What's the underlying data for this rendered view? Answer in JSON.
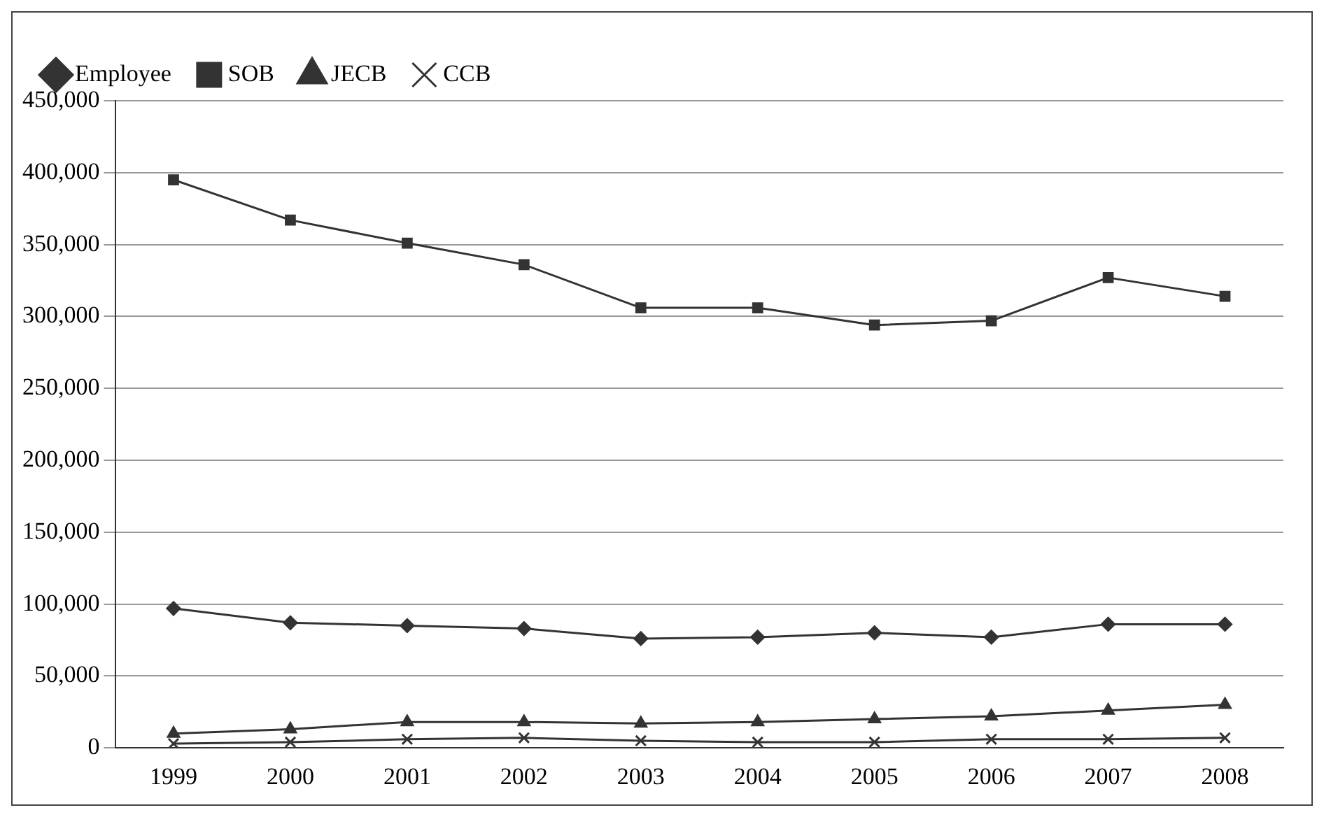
{
  "chart_data": {
    "type": "line",
    "categories": [
      "1999",
      "2000",
      "2001",
      "2002",
      "2003",
      "2004",
      "2005",
      "2006",
      "2007",
      "2008"
    ],
    "series": [
      {
        "name": "Employee",
        "color": "#333333",
        "marker": "diamond",
        "values": [
          97000,
          87000,
          85000,
          83000,
          76000,
          77000,
          80000,
          77000,
          86000,
          86000
        ]
      },
      {
        "name": "SOB",
        "color": "#333333",
        "marker": "square",
        "values": [
          395000,
          367000,
          351000,
          336000,
          306000,
          306000,
          294000,
          297000,
          327000,
          314000
        ]
      },
      {
        "name": "JECB",
        "color": "#333333",
        "marker": "triangle",
        "values": [
          10000,
          13000,
          18000,
          18000,
          17000,
          18000,
          20000,
          22000,
          26000,
          30000
        ]
      },
      {
        "name": "CCB",
        "color": "#333333",
        "marker": "cross",
        "values": [
          3000,
          4000,
          6000,
          7000,
          5000,
          4000,
          4000,
          6000,
          6000,
          7000
        ]
      }
    ],
    "ylim": [
      0,
      450000
    ],
    "yticks": [
      {
        "value": 0,
        "label": "0"
      },
      {
        "value": 50000,
        "label": "50,000"
      },
      {
        "value": 100000,
        "label": "100,000"
      },
      {
        "value": 150000,
        "label": "150,000"
      },
      {
        "value": 200000,
        "label": "200,000"
      },
      {
        "value": 250000,
        "label": "250,000"
      },
      {
        "value": 300000,
        "label": "300,000"
      },
      {
        "value": 350000,
        "label": "350,000"
      },
      {
        "value": 400000,
        "label": "400,000"
      },
      {
        "value": 450000,
        "label": "450,000"
      }
    ],
    "grid": "y",
    "legend": "top left",
    "line_style": "solid"
  }
}
